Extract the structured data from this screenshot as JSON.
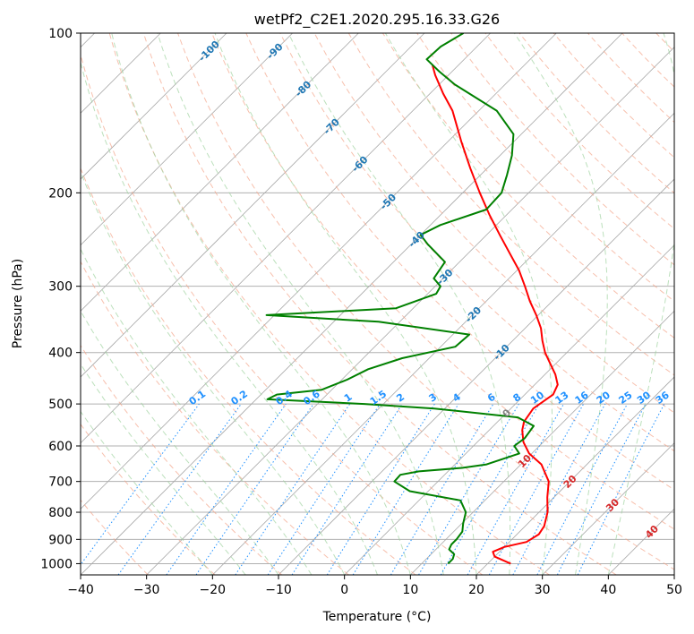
{
  "chart_data": {
    "type": "line",
    "subtype": "skew-T log-P diagram",
    "title": "wetPf2_C2E1.2020.295.16.33.G26",
    "xlabel": "Temperature (°C)",
    "ylabel": "Pressure (hPa)",
    "xlim": [
      -40,
      50
    ],
    "ylim": [
      1050,
      100
    ],
    "y_scale": "log",
    "grid": true,
    "x_ticks": [
      "−40",
      "−30",
      "−20",
      "−10",
      "0",
      "10",
      "20",
      "30",
      "40",
      "50"
    ],
    "y_ticks": [
      "100",
      "200",
      "300",
      "400",
      "500",
      "600",
      "700",
      "800",
      "900",
      "1000"
    ],
    "dry_adiabat_labels": [
      "-100",
      "-90",
      "-80",
      "-70",
      "-60",
      "-50",
      "-40",
      "-30",
      "-20",
      "-10",
      "0",
      "10",
      "20",
      "30",
      "40"
    ],
    "mixing_ratio_labels": [
      "0.1",
      "0.2",
      "0.4",
      "0.6",
      "1",
      "1.5",
      "2",
      "3",
      "4",
      "6",
      "8",
      "10",
      "13",
      "16",
      "20",
      "25",
      "30",
      "36"
    ],
    "series": [
      {
        "kind": "temperature",
        "color": "#ff0000",
        "points": [
          {
            "p": 1000,
            "t": 23.5
          },
          {
            "p": 970,
            "t": 20.0
          },
          {
            "p": 950,
            "t": 19.0
          },
          {
            "p": 930,
            "t": 20.0
          },
          {
            "p": 910,
            "t": 22.6
          },
          {
            "p": 880,
            "t": 23.3
          },
          {
            "p": 850,
            "t": 22.9
          },
          {
            "p": 800,
            "t": 21.3
          },
          {
            "p": 750,
            "t": 19.0
          },
          {
            "p": 700,
            "t": 16.8
          },
          {
            "p": 650,
            "t": 13.1
          },
          {
            "p": 620,
            "t": 9.6
          },
          {
            "p": 590,
            "t": 7.0
          },
          {
            "p": 560,
            "t": 5.0
          },
          {
            "p": 540,
            "t": 4.0
          },
          {
            "p": 510,
            "t": 3.4
          },
          {
            "p": 480,
            "t": 4.3
          },
          {
            "p": 460,
            "t": 3.5
          },
          {
            "p": 440,
            "t": 1.6
          },
          {
            "p": 420,
            "t": -0.8
          },
          {
            "p": 400,
            "t": -3.3
          },
          {
            "p": 380,
            "t": -5.5
          },
          {
            "p": 360,
            "t": -7.6
          },
          {
            "p": 340,
            "t": -10.3
          },
          {
            "p": 320,
            "t": -13.4
          },
          {
            "p": 300,
            "t": -16.4
          },
          {
            "p": 280,
            "t": -19.7
          },
          {
            "p": 260,
            "t": -23.7
          },
          {
            "p": 240,
            "t": -28.0
          },
          {
            "p": 220,
            "t": -32.6
          },
          {
            "p": 200,
            "t": -37.4
          },
          {
            "p": 180,
            "t": -42.5
          },
          {
            "p": 160,
            "t": -48.0
          },
          {
            "p": 140,
            "t": -54.0
          },
          {
            "p": 130,
            "t": -58.0
          },
          {
            "p": 120,
            "t": -62.0
          },
          {
            "p": 115,
            "t": -63.9
          }
        ]
      },
      {
        "kind": "dewpoint",
        "color": "#008000",
        "points": [
          {
            "p": 1000,
            "t": 14.0
          },
          {
            "p": 980,
            "t": 14.0
          },
          {
            "p": 960,
            "t": 13.5
          },
          {
            "p": 940,
            "t": 12.0
          },
          {
            "p": 920,
            "t": 11.6
          },
          {
            "p": 900,
            "t": 11.6
          },
          {
            "p": 870,
            "t": 11.3
          },
          {
            "p": 840,
            "t": 10.2
          },
          {
            "p": 800,
            "t": 8.9
          },
          {
            "p": 760,
            "t": 6.3
          },
          {
            "p": 730,
            "t": -2.8
          },
          {
            "p": 700,
            "t": -6.6
          },
          {
            "p": 680,
            "t": -6.7
          },
          {
            "p": 670,
            "t": -4.4
          },
          {
            "p": 660,
            "t": 1.6
          },
          {
            "p": 650,
            "t": 4.8
          },
          {
            "p": 620,
            "t": 8.1
          },
          {
            "p": 600,
            "t": 6.2
          },
          {
            "p": 580,
            "t": 6.6
          },
          {
            "p": 550,
            "t": 6.1
          },
          {
            "p": 530,
            "t": 2.4
          },
          {
            "p": 510,
            "t": -11.6
          },
          {
            "p": 500,
            "t": -22.9
          },
          {
            "p": 490,
            "t": -38.3
          },
          {
            "p": 480,
            "t": -37.6
          },
          {
            "p": 470,
            "t": -31.5
          },
          {
            "p": 450,
            "t": -29.2
          },
          {
            "p": 430,
            "t": -27.6
          },
          {
            "p": 410,
            "t": -24.1
          },
          {
            "p": 390,
            "t": -17.8
          },
          {
            "p": 370,
            "t": -17.5
          },
          {
            "p": 350,
            "t": -33.2
          },
          {
            "p": 340,
            "t": -51.2
          },
          {
            "p": 330,
            "t": -32.6
          },
          {
            "p": 310,
            "t": -28.7
          },
          {
            "p": 300,
            "t": -29.2
          },
          {
            "p": 290,
            "t": -31.4
          },
          {
            "p": 270,
            "t": -32.2
          },
          {
            "p": 250,
            "t": -37.5
          },
          {
            "p": 240,
            "t": -40.0
          },
          {
            "p": 230,
            "t": -38.5
          },
          {
            "p": 215,
            "t": -33.9
          },
          {
            "p": 200,
            "t": -34.1
          },
          {
            "p": 185,
            "t": -36.0
          },
          {
            "p": 170,
            "t": -38.2
          },
          {
            "p": 155,
            "t": -41.2
          },
          {
            "p": 140,
            "t": -47.3
          },
          {
            "p": 125,
            "t": -57.6
          },
          {
            "p": 118,
            "t": -62.0
          },
          {
            "p": 112,
            "t": -65.7
          },
          {
            "p": 106,
            "t": -65.5
          },
          {
            "p": 100,
            "t": -64.1
          }
        ]
      }
    ]
  }
}
